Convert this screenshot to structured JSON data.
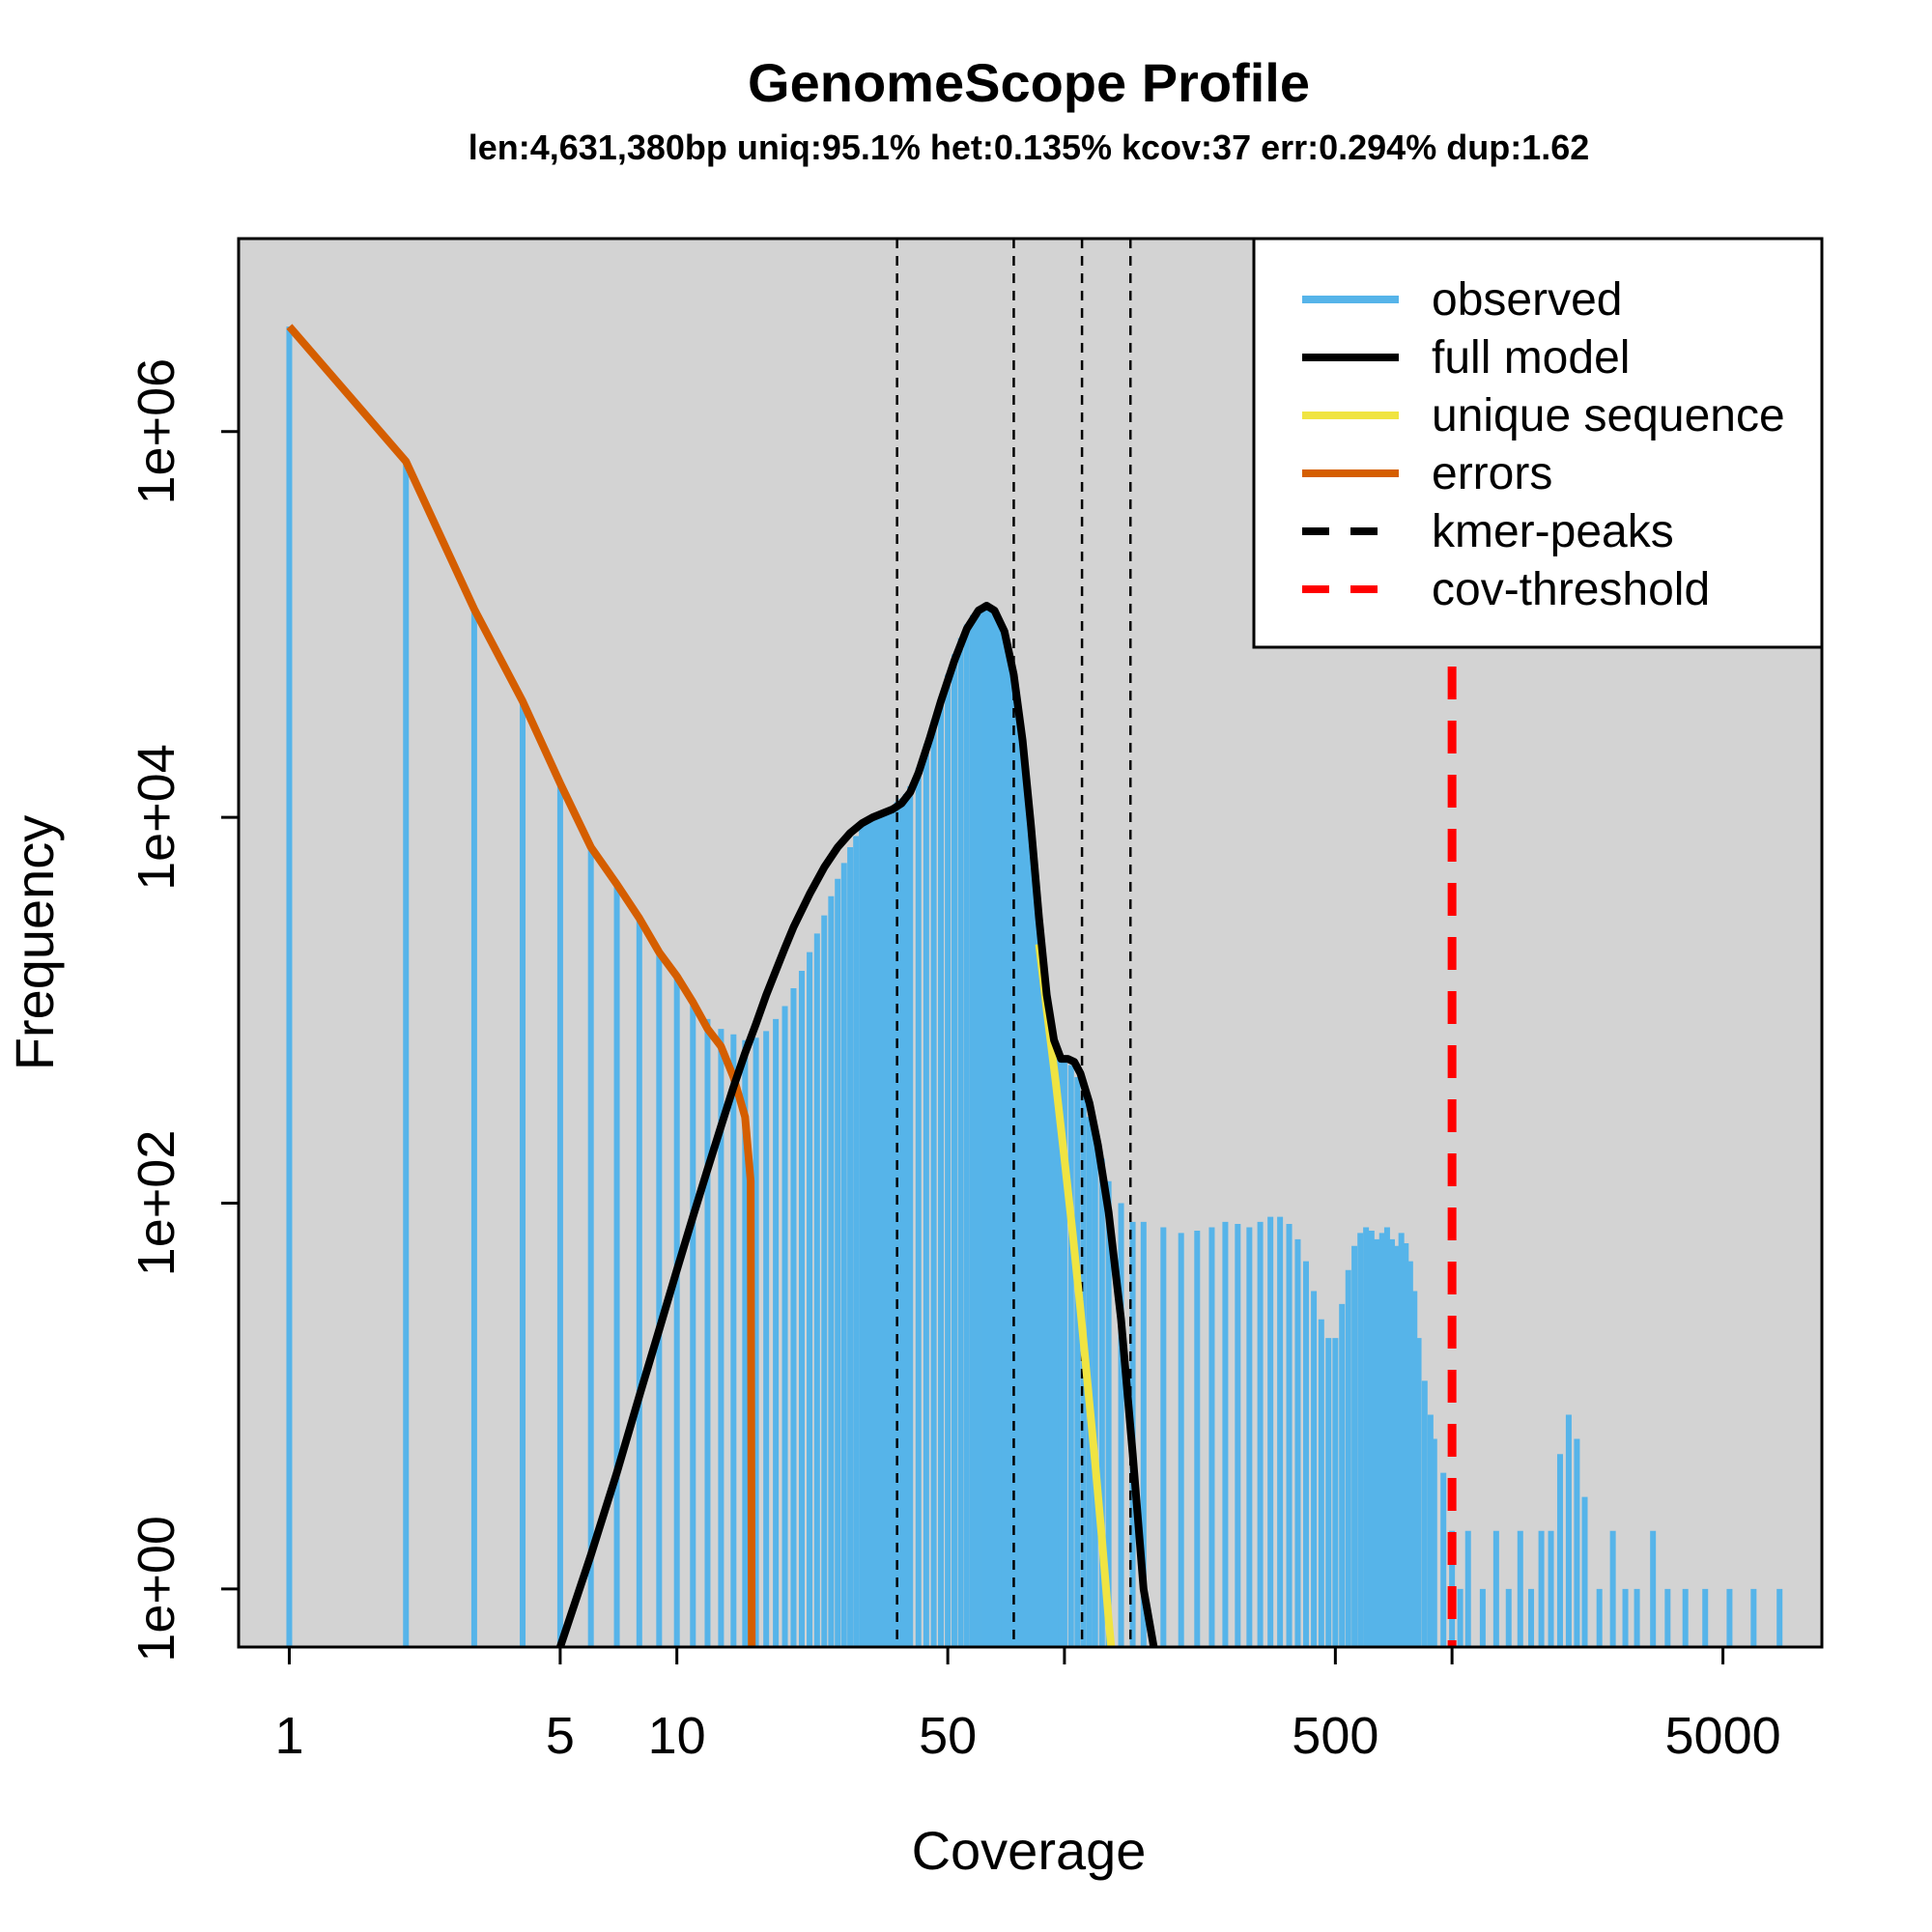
{
  "chart_data": {
    "type": "histogram",
    "title": "GenomeScope Profile",
    "subtitle": "len:4,631,380bp uniq:95.1% het:0.135% kcov:37 err:0.294% dup:1.62",
    "xlabel": "Coverage",
    "ylabel": "Frequency",
    "x_scale": "log",
    "y_scale": "log",
    "xlim": [
      0.74,
      9000
    ],
    "ylim": [
      0.5,
      10000000
    ],
    "xticks": [
      1,
      5,
      10,
      50,
      500,
      5000
    ],
    "xticks_minor": [
      100,
      1000
    ],
    "yticks": [
      1,
      100,
      10000,
      1000000
    ],
    "ytick_labels": [
      "1e+00",
      "1e+02",
      "1e+04",
      "1e+06"
    ],
    "background_color": "#d3d3d3",
    "legend": {
      "position": "top-right",
      "items": [
        {
          "label": "observed",
          "color": "#56b4e9",
          "style": "solid"
        },
        {
          "label": "full model",
          "color": "#000000",
          "style": "solid"
        },
        {
          "label": "unique sequence",
          "color": "#f0e442",
          "style": "solid"
        },
        {
          "label": "errors",
          "color": "#d55e00",
          "style": "solid"
        },
        {
          "label": "kmer-peaks",
          "color": "#000000",
          "style": "dashed"
        },
        {
          "label": "cov-threshold",
          "color": "#ff0000",
          "style": "dashed"
        }
      ]
    },
    "kmer_peaks": [
      37,
      74,
      111,
      148
    ],
    "cov_threshold": 1000,
    "series": [
      {
        "name": "observed",
        "color": "#56b4e9",
        "points": [
          [
            1,
            3500000
          ],
          [
            2,
            700000
          ],
          [
            3,
            120000
          ],
          [
            4,
            40000
          ],
          [
            5,
            15000
          ],
          [
            6,
            7000
          ],
          [
            7,
            4500
          ],
          [
            8,
            3000
          ],
          [
            9,
            2000
          ],
          [
            10,
            1500
          ],
          [
            11,
            1100
          ],
          [
            12,
            900
          ],
          [
            13,
            800
          ],
          [
            14,
            750
          ],
          [
            15,
            700
          ],
          [
            16,
            720
          ],
          [
            17,
            780
          ],
          [
            18,
            900
          ],
          [
            19,
            1050
          ],
          [
            20,
            1300
          ],
          [
            21,
            1600
          ],
          [
            22,
            2000
          ],
          [
            23,
            2500
          ],
          [
            24,
            3100
          ],
          [
            25,
            3900
          ],
          [
            26,
            4800
          ],
          [
            27,
            5800
          ],
          [
            28,
            7000
          ],
          [
            29,
            8000
          ],
          [
            30,
            9000
          ],
          [
            31,
            9800
          ],
          [
            32,
            10300
          ],
          [
            33,
            10600
          ],
          [
            34,
            10800
          ],
          [
            35,
            11000
          ],
          [
            36,
            11400
          ],
          [
            37,
            12000
          ],
          [
            38,
            12500
          ],
          [
            39,
            13200
          ],
          [
            40,
            14500
          ],
          [
            42,
            18000
          ],
          [
            44,
            24000
          ],
          [
            46,
            32000
          ],
          [
            48,
            42000
          ],
          [
            50,
            55000
          ],
          [
            52,
            70000
          ],
          [
            54,
            85000
          ],
          [
            56,
            100000
          ],
          [
            58,
            112000
          ],
          [
            60,
            120000
          ],
          [
            62,
            125000
          ],
          [
            64,
            124000
          ],
          [
            66,
            118000
          ],
          [
            68,
            105000
          ],
          [
            70,
            88000
          ],
          [
            72,
            68000
          ],
          [
            74,
            48000
          ],
          [
            76,
            32000
          ],
          [
            78,
            20000
          ],
          [
            80,
            12000
          ],
          [
            82,
            7000
          ],
          [
            84,
            4000
          ],
          [
            86,
            2500
          ],
          [
            88,
            1500
          ],
          [
            90,
            1000
          ],
          [
            92,
            800
          ],
          [
            94,
            650
          ],
          [
            96,
            600
          ],
          [
            98,
            580
          ],
          [
            100,
            560
          ],
          [
            104,
            520
          ],
          [
            108,
            450
          ],
          [
            112,
            360
          ],
          [
            116,
            280
          ],
          [
            120,
            220
          ],
          [
            125,
            170
          ],
          [
            130,
            130
          ],
          [
            140,
            100
          ],
          [
            150,
            80
          ],
          [
            160,
            80
          ],
          [
            180,
            75
          ],
          [
            200,
            70
          ],
          [
            220,
            72
          ],
          [
            240,
            75
          ],
          [
            260,
            80
          ],
          [
            280,
            78
          ],
          [
            300,
            75
          ],
          [
            320,
            80
          ],
          [
            340,
            85
          ],
          [
            360,
            85
          ],
          [
            380,
            78
          ],
          [
            400,
            65
          ],
          [
            420,
            50
          ],
          [
            440,
            35
          ],
          [
            460,
            25
          ],
          [
            480,
            20
          ],
          [
            500,
            20
          ],
          [
            520,
            30
          ],
          [
            540,
            45
          ],
          [
            560,
            60
          ],
          [
            580,
            70
          ],
          [
            600,
            75
          ],
          [
            620,
            72
          ],
          [
            640,
            65
          ],
          [
            660,
            70
          ],
          [
            680,
            75
          ],
          [
            700,
            65
          ],
          [
            720,
            60
          ],
          [
            740,
            70
          ],
          [
            760,
            62
          ],
          [
            780,
            50
          ],
          [
            800,
            35
          ],
          [
            820,
            20
          ],
          [
            850,
            12
          ],
          [
            880,
            8
          ],
          [
            900,
            6
          ],
          [
            950,
            4
          ],
          [
            1000,
            2
          ],
          [
            1050,
            1
          ],
          [
            1100,
            2
          ],
          [
            1200,
            1
          ],
          [
            1300,
            2
          ],
          [
            1400,
            1
          ],
          [
            1500,
            2
          ],
          [
            1600,
            1
          ],
          [
            1700,
            2
          ],
          [
            1800,
            2
          ],
          [
            1900,
            5
          ],
          [
            2000,
            8
          ],
          [
            2100,
            6
          ],
          [
            2200,
            3
          ],
          [
            2400,
            1
          ],
          [
            2600,
            2
          ],
          [
            2800,
            1
          ],
          [
            3000,
            1
          ],
          [
            3300,
            2
          ],
          [
            3600,
            1
          ],
          [
            4000,
            1
          ],
          [
            4500,
            1
          ],
          [
            5200,
            1
          ],
          [
            6000,
            1
          ],
          [
            7000,
            1
          ]
        ]
      },
      {
        "name": "full model",
        "color": "#000000",
        "points": [
          [
            5,
            0.5
          ],
          [
            6,
            1.5
          ],
          [
            7,
            4
          ],
          [
            8,
            10
          ],
          [
            9,
            22
          ],
          [
            10,
            45
          ],
          [
            11,
            85
          ],
          [
            12,
            150
          ],
          [
            13,
            250
          ],
          [
            14,
            400
          ],
          [
            15,
            600
          ],
          [
            16,
            850
          ],
          [
            17,
            1200
          ],
          [
            18,
            1600
          ],
          [
            19,
            2100
          ],
          [
            20,
            2700
          ],
          [
            22,
            4000
          ],
          [
            24,
            5500
          ],
          [
            26,
            7000
          ],
          [
            28,
            8300
          ],
          [
            30,
            9300
          ],
          [
            32,
            10000
          ],
          [
            34,
            10500
          ],
          [
            36,
            11000
          ],
          [
            38,
            11800
          ],
          [
            40,
            13500
          ],
          [
            42,
            17000
          ],
          [
            45,
            26000
          ],
          [
            48,
            40000
          ],
          [
            52,
            65000
          ],
          [
            56,
            95000
          ],
          [
            60,
            118000
          ],
          [
            63,
            125000
          ],
          [
            66,
            118000
          ],
          [
            70,
            92000
          ],
          [
            74,
            55000
          ],
          [
            78,
            25000
          ],
          [
            82,
            9000
          ],
          [
            86,
            3000
          ],
          [
            90,
            1200
          ],
          [
            94,
            700
          ],
          [
            98,
            560
          ],
          [
            102,
            560
          ],
          [
            106,
            540
          ],
          [
            110,
            470
          ],
          [
            116,
            330
          ],
          [
            122,
            200
          ],
          [
            130,
            90
          ],
          [
            140,
            25
          ],
          [
            150,
            5
          ],
          [
            160,
            1
          ],
          [
            170,
            0.5
          ]
        ]
      },
      {
        "name": "unique sequence",
        "color": "#f0e442",
        "points": [
          [
            86,
            2200
          ],
          [
            90,
            1000
          ],
          [
            95,
            420
          ],
          [
            100,
            170
          ],
          [
            105,
            70
          ],
          [
            110,
            28
          ],
          [
            115,
            11
          ],
          [
            120,
            4.5
          ],
          [
            125,
            1.8
          ],
          [
            130,
            0.7
          ],
          [
            132,
            0.5
          ]
        ]
      },
      {
        "name": "errors",
        "color": "#d55e00",
        "points": [
          [
            1,
            3500000
          ],
          [
            2,
            700000
          ],
          [
            3,
            120000
          ],
          [
            4,
            40000
          ],
          [
            5,
            15000
          ],
          [
            6,
            7000
          ],
          [
            7,
            4500
          ],
          [
            8,
            3000
          ],
          [
            9,
            2000
          ],
          [
            10,
            1500
          ],
          [
            11,
            1100
          ],
          [
            12,
            800
          ],
          [
            13,
            650
          ],
          [
            14,
            450
          ],
          [
            15,
            280
          ],
          [
            15.5,
            130
          ],
          [
            15.6,
            0.5
          ]
        ]
      }
    ]
  }
}
